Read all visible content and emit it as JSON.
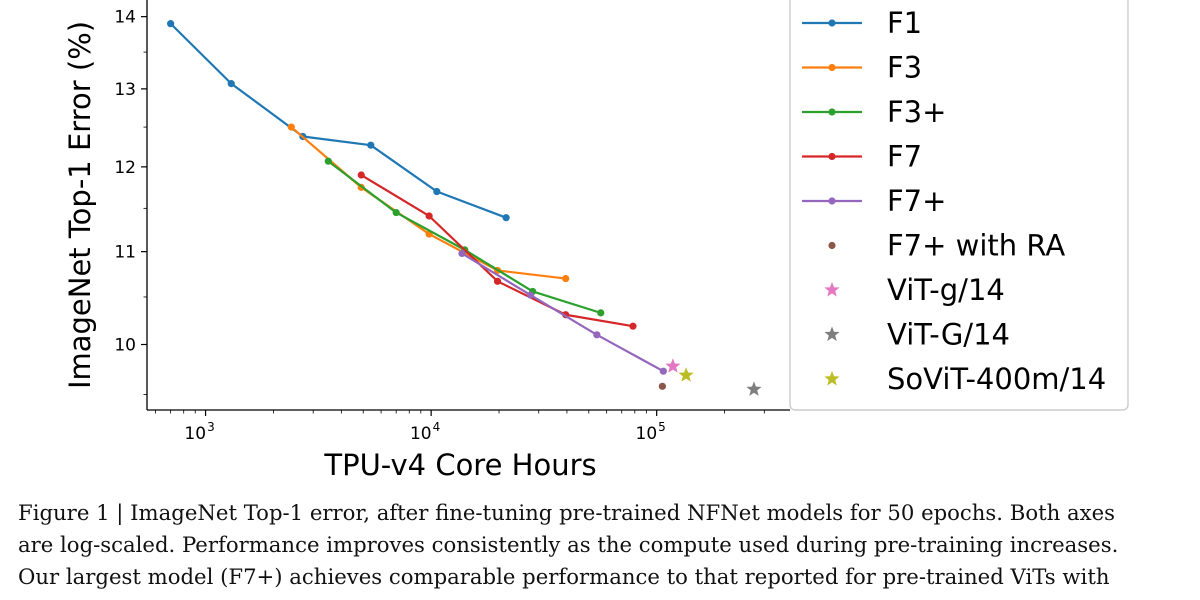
{
  "chart_data": {
    "type": "line",
    "xscale": "log",
    "yscale": "log",
    "xlabel": "TPU-v4 Core Hours",
    "ylabel": "ImageNet Top-1 Error (%)",
    "xlim": [
      550,
      390000
    ],
    "ylim": [
      9.35,
      14.3
    ],
    "xticks": [
      {
        "value": 1000,
        "label": "10",
        "exp": "3"
      },
      {
        "value": 10000,
        "label": "10",
        "exp": "4"
      },
      {
        "value": 100000,
        "label": "10",
        "exp": "5"
      }
    ],
    "yticks": [
      10,
      11,
      12,
      13,
      14
    ],
    "legend_position": "right",
    "series": [
      {
        "name": "F1",
        "color": "#1f77b4",
        "marker": "dot",
        "points": [
          [
            700,
            13.9
          ],
          [
            1300,
            13.07
          ],
          [
            2700,
            12.38
          ],
          [
            5400,
            12.27
          ],
          [
            10600,
            11.7
          ],
          [
            21500,
            11.39
          ]
        ]
      },
      {
        "name": "F3",
        "color": "#ff7f0e",
        "marker": "dot",
        "points": [
          [
            2400,
            12.5
          ],
          [
            4900,
            11.75
          ],
          [
            9800,
            11.2
          ],
          [
            19700,
            10.79
          ],
          [
            39500,
            10.7
          ]
        ]
      },
      {
        "name": "F3+",
        "color": "#2ca02c",
        "marker": "dot",
        "points": [
          [
            3500,
            12.07
          ],
          [
            7000,
            11.45
          ],
          [
            14100,
            11.02
          ],
          [
            28200,
            10.56
          ],
          [
            56500,
            10.33
          ]
        ]
      },
      {
        "name": "F7",
        "color": "#d62728",
        "marker": "dot",
        "points": [
          [
            4900,
            11.9
          ],
          [
            9800,
            11.41
          ],
          [
            19700,
            10.67
          ],
          [
            39500,
            10.31
          ],
          [
            78500,
            10.19
          ]
        ]
      },
      {
        "name": "F7+",
        "color": "#9467bd",
        "marker": "dot",
        "points": [
          [
            13700,
            10.98
          ],
          [
            27600,
            10.52
          ],
          [
            54300,
            10.1
          ],
          [
            107000,
            9.73
          ]
        ]
      },
      {
        "name": "F7+ with RA",
        "color": "#8c564b",
        "marker": "dot",
        "line": false,
        "points": [
          [
            106000,
            9.58
          ]
        ]
      },
      {
        "name": "ViT-g/14",
        "color": "#e377c2",
        "marker": "star",
        "line": false,
        "points": [
          [
            118000,
            9.78
          ]
        ]
      },
      {
        "name": "ViT-G/14",
        "color": "#7f7f7f",
        "marker": "star",
        "line": false,
        "points": [
          [
            270000,
            9.55
          ]
        ]
      },
      {
        "name": "SoViT-400m/14",
        "color": "#bcbd22",
        "marker": "star",
        "line": false,
        "points": [
          [
            135000,
            9.69
          ]
        ]
      }
    ]
  },
  "caption": {
    "lines": [
      "Figure 1 | ImageNet Top-1 error, after fine-tuning pre-trained NFNet models for 50 epochs. Both axes",
      "are log-scaled. Performance improves consistently as the compute used during pre-training increases.",
      "Our largest model (F7+) achieves comparable performance to that reported for pre-trained ViTs with"
    ]
  }
}
